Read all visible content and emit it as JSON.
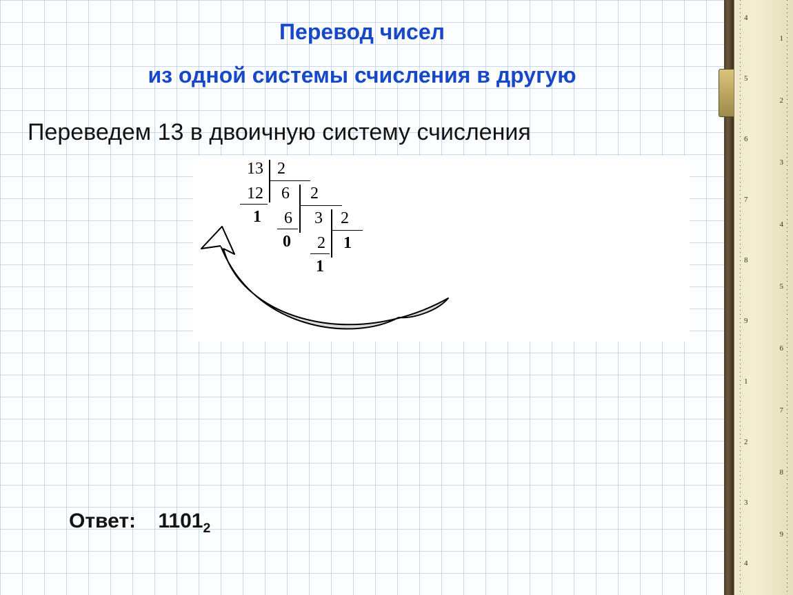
{
  "title_line1": "Перевод чисел",
  "title_line2": "из одной системы счисления в другую",
  "body_text": "Переведем 13 в двоичную систему счисления",
  "answer_label": "Ответ:",
  "answer_value": "1101",
  "answer_base": "2",
  "colors": {
    "heading": "#1648c8",
    "text": "#131313",
    "grid_line": "#9fbbe5",
    "paper_bg": "#fcfdff",
    "ruler_wood": "#6a583d",
    "ruler_face": "#f4eed4"
  },
  "division": {
    "base": "2",
    "steps": [
      {
        "dividend": "13",
        "under": "12",
        "remainder": "1",
        "quotient_next": "6"
      },
      {
        "dividend": "6",
        "under": "6",
        "remainder": "0",
        "quotient_next": "3"
      },
      {
        "dividend": "3",
        "under": "2",
        "remainder": "1",
        "quotient_next": "1"
      },
      {
        "dividend": "1"
      }
    ]
  },
  "ruler_left_numbers": [
    "4",
    "5",
    "6",
    "7",
    "8",
    "9",
    "1",
    "2",
    "3",
    "4"
  ],
  "ruler_right_numbers": [
    "1",
    "2",
    "3",
    "4",
    "5",
    "6",
    "7",
    "8",
    "9"
  ]
}
